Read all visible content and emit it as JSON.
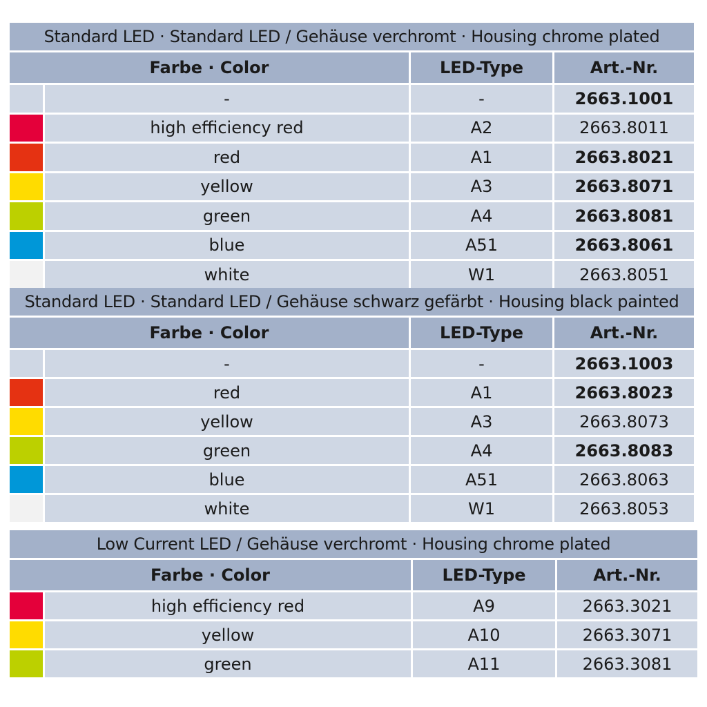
{
  "colors": {
    "header_bg": "#a3b1c9",
    "row_bg": "#cfd7e4",
    "none": "#cfd7e4",
    "high_efficiency_red": "#e4003a",
    "red": "#e53212",
    "yellow": "#ffdc00",
    "green": "#bcd000",
    "blue": "#0097d8",
    "white": "#f2f2f2"
  },
  "headers": {
    "color": "Farbe · Color",
    "type": "LED-Type",
    "art": "Art.-Nr."
  },
  "tables": [
    {
      "title": "Standard LED · Standard LED / Gehäuse verchromt · Housing chrome plated",
      "rows": [
        {
          "swatch": "none",
          "color": "-",
          "type": "-",
          "art": "2663.1001",
          "bold": true
        },
        {
          "swatch": "high_efficiency_red",
          "color": "high efficiency red",
          "type": "A2",
          "art": "2663.8011",
          "bold": false
        },
        {
          "swatch": "red",
          "color": "red",
          "type": "A1",
          "art": "2663.8021",
          "bold": true
        },
        {
          "swatch": "yellow",
          "color": "yellow",
          "type": "A3",
          "art": "2663.8071",
          "bold": true
        },
        {
          "swatch": "green",
          "color": "green",
          "type": "A4",
          "art": "2663.8081",
          "bold": true
        },
        {
          "swatch": "blue",
          "color": "blue",
          "type": "A51",
          "art": "2663.8061",
          "bold": true
        },
        {
          "swatch": "white",
          "color": "white",
          "type": "W1",
          "art": "2663.8051",
          "bold": false
        }
      ]
    },
    {
      "title": "Standard LED · Standard LED / Gehäuse schwarz gefärbt · Housing black painted",
      "rows": [
        {
          "swatch": "none",
          "color": "-",
          "type": "-",
          "art": "2663.1003",
          "bold": true
        },
        {
          "swatch": "red",
          "color": "red",
          "type": "A1",
          "art": "2663.8023",
          "bold": true
        },
        {
          "swatch": "yellow",
          "color": "yellow",
          "type": "A3",
          "art": "2663.8073",
          "bold": false
        },
        {
          "swatch": "green",
          "color": "green",
          "type": "A4",
          "art": "2663.8083",
          "bold": true
        },
        {
          "swatch": "blue",
          "color": "blue",
          "type": "A51",
          "art": "2663.8063",
          "bold": false
        },
        {
          "swatch": "white",
          "color": "white",
          "type": "W1",
          "art": "2663.8053",
          "bold": false
        }
      ]
    },
    {
      "title": "Low Current LED / Gehäuse verchromt · Housing chrome plated",
      "rows": [
        {
          "swatch": "high_efficiency_red",
          "color": "high efficiency red",
          "type": "A9",
          "art": "2663.3021",
          "bold": false
        },
        {
          "swatch": "yellow",
          "color": "yellow",
          "type": "A10",
          "art": "2663.3071",
          "bold": false
        },
        {
          "swatch": "green",
          "color": "green",
          "type": "A11",
          "art": "2663.3081",
          "bold": false
        }
      ]
    }
  ]
}
